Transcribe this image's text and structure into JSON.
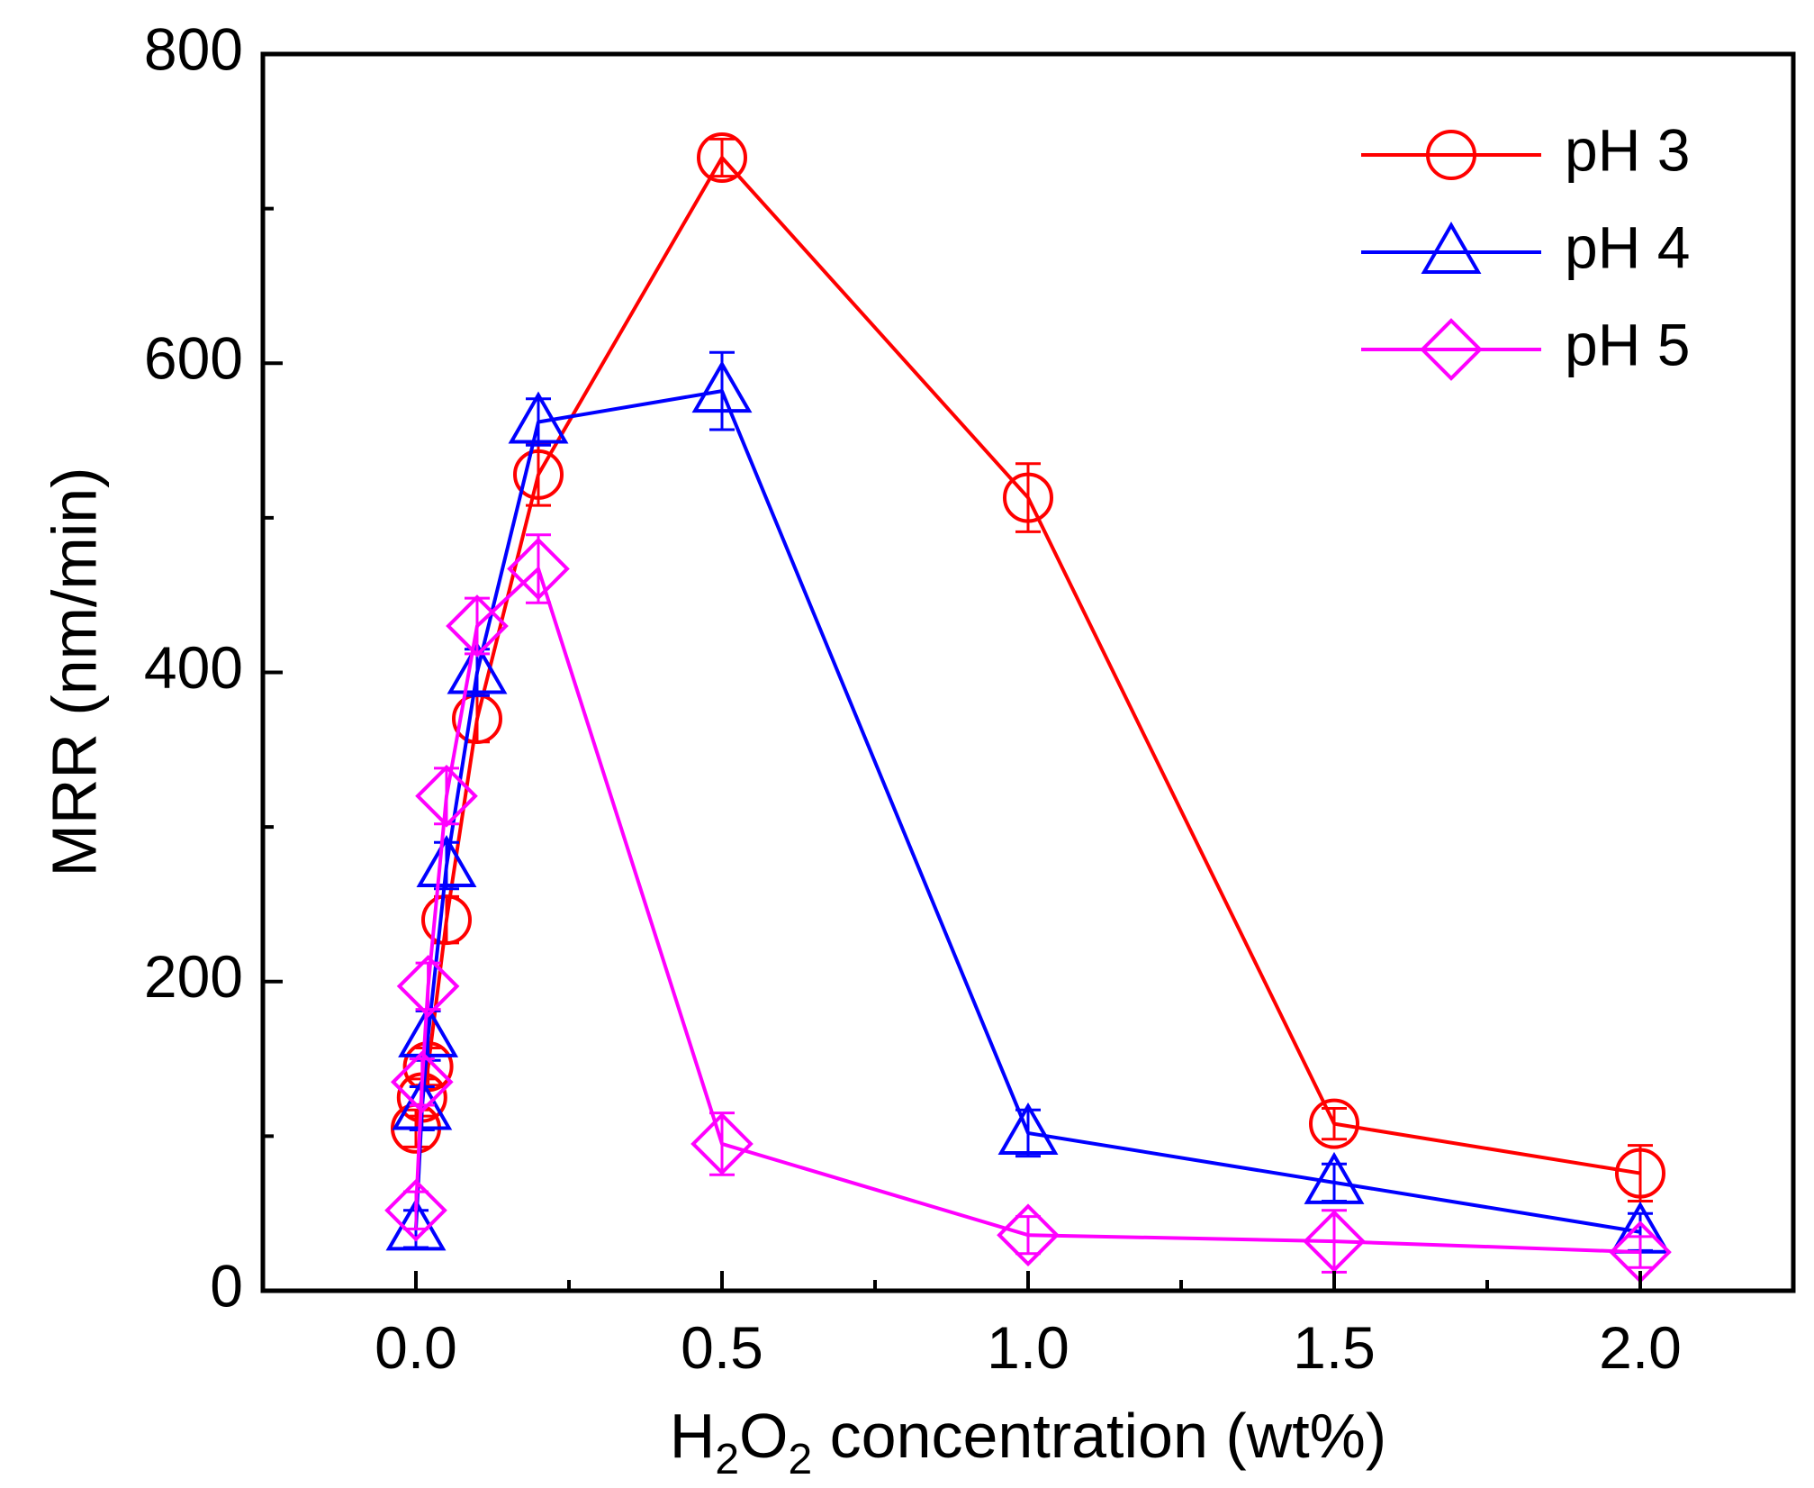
{
  "chart_data": {
    "type": "line",
    "title": "",
    "xlabel_parts": {
      "pre": "H",
      "sub1": "2",
      "mid": "O",
      "sub2": "2",
      "post": " concentration (wt%)"
    },
    "ylabel": "MRR (nm/min)",
    "xlim": [
      -0.25,
      2.25
    ],
    "ylim": [
      0,
      800
    ],
    "xticks": [
      0.0,
      0.5,
      1.0,
      1.5,
      2.0
    ],
    "xtick_labels": [
      "0.0",
      "0.5",
      "1.0",
      "1.5",
      "2.0"
    ],
    "xminor": [
      0.25,
      0.75,
      1.25,
      1.75
    ],
    "yticks": [
      0,
      200,
      400,
      600,
      800
    ],
    "ytick_labels": [
      "0",
      "200",
      "400",
      "600",
      "800"
    ],
    "yminor": [
      100,
      300,
      500,
      700
    ],
    "grid": false,
    "legend_position": "top-right",
    "series": [
      {
        "name": "pH 3",
        "color": "#ff0000",
        "marker": "circle",
        "x": [
          0.0,
          0.01,
          0.02,
          0.05,
          0.1,
          0.2,
          0.5,
          1.0,
          1.5,
          2.0
        ],
        "y": [
          105,
          125,
          145,
          240,
          370,
          528,
          733,
          513,
          108,
          76
        ],
        "err": [
          12,
          12,
          12,
          15,
          15,
          20,
          12,
          22,
          10,
          18
        ]
      },
      {
        "name": "pH 4",
        "color": "#0000ff",
        "marker": "triangle",
        "x": [
          0.0,
          0.01,
          0.02,
          0.05,
          0.1,
          0.2,
          0.5,
          1.0,
          1.5,
          2.0
        ],
        "y": [
          40,
          118,
          165,
          275,
          400,
          562,
          582,
          102,
          70,
          38
        ],
        "err": [
          12,
          14,
          16,
          15,
          15,
          15,
          25,
          15,
          12,
          12
        ]
      },
      {
        "name": "pH 5",
        "color": "#ff00ff",
        "marker": "diamond",
        "x": [
          0.0,
          0.01,
          0.02,
          0.05,
          0.1,
          0.2,
          0.5,
          1.0,
          1.5,
          2.0
        ],
        "y": [
          52,
          135,
          197,
          320,
          430,
          467,
          95,
          36,
          32,
          25
        ],
        "err": [
          12,
          15,
          15,
          18,
          18,
          22,
          20,
          12,
          20,
          10
        ]
      }
    ]
  }
}
